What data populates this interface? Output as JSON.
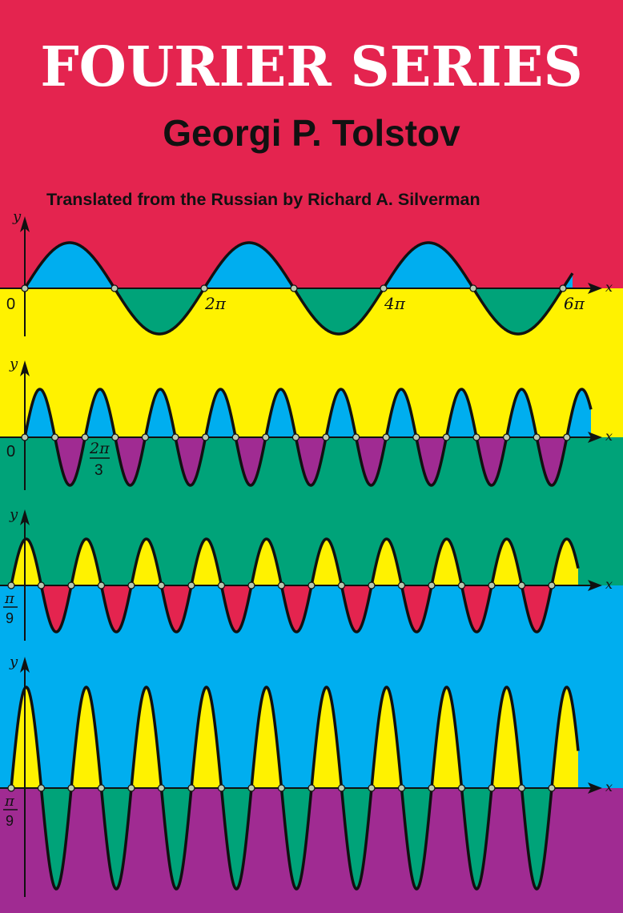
{
  "cover": {
    "title": "FOURIER SERIES",
    "author": "Georgi P. Tolstov",
    "translator_line": "Translated from the Russian by Richard A. Silverman"
  },
  "colors": {
    "red": "#e4244f",
    "yellow": "#fff200",
    "green": "#00a379",
    "blue": "#00aeef",
    "purple": "#a02b92",
    "ink": "#111111"
  },
  "graphs": [
    {
      "name": "graph-1",
      "frequency": 1,
      "positive_fill": "blue",
      "negative_fill": "green",
      "band_above": "red",
      "band_below": "yellow",
      "axis_label_y": "y",
      "axis_label_x": "x",
      "origin_label": "0",
      "tick_labels": [
        "2π",
        "4π",
        "6π"
      ]
    },
    {
      "name": "graph-2",
      "frequency": 3,
      "positive_fill": "blue",
      "negative_fill": "purple",
      "band_above": "yellow",
      "band_below": "green",
      "axis_label_y": "y",
      "axis_label_x": "x",
      "origin_label": "0",
      "tick_fraction": {
        "numerator": "2π",
        "denominator": "3"
      }
    },
    {
      "name": "graph-3",
      "frequency": 5,
      "positive_fill": "yellow",
      "negative_fill": "red",
      "band_above": "green",
      "band_below": "blue",
      "axis_label_y": "y",
      "axis_label_x": "x",
      "origin_fraction": {
        "numerator": "π",
        "denominator": "9"
      }
    },
    {
      "name": "graph-4",
      "frequency": 5,
      "positive_fill": "yellow",
      "negative_fill": "green",
      "band_above": "blue",
      "band_below": "purple",
      "axis_label_y": "y",
      "axis_label_x": "x",
      "origin_fraction": {
        "numerator": "π",
        "denominator": "9"
      }
    }
  ]
}
